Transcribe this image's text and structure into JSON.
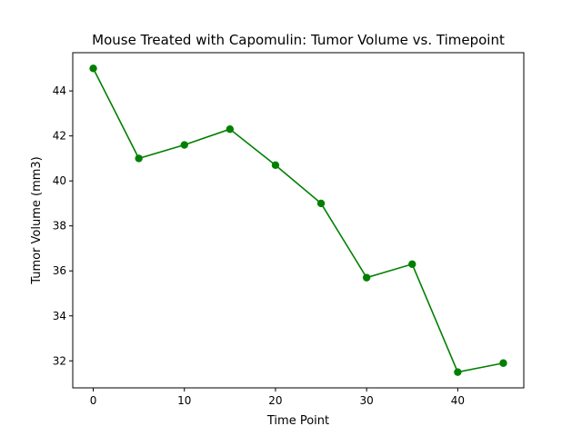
{
  "chart_data": {
    "type": "line",
    "title": "Mouse Treated with Capomulin: Tumor Volume vs. Timepoint",
    "xlabel": "Time Point",
    "ylabel": "Tumor Volume (mm3)",
    "x": [
      0,
      5,
      10,
      15,
      20,
      25,
      30,
      35,
      40,
      45
    ],
    "series": [
      {
        "values": [
          45.0,
          41.0,
          41.6,
          42.3,
          40.7,
          39.0,
          35.7,
          36.3,
          31.5,
          31.9
        ]
      }
    ],
    "xlim": [
      -2.25,
      47.25
    ],
    "ylim": [
      30.8,
      45.7
    ],
    "xticks": [
      0,
      10,
      20,
      30,
      40
    ],
    "yticks": [
      32,
      34,
      36,
      38,
      40,
      42,
      44
    ],
    "color": "#008000",
    "marker": "circle",
    "grid": false
  }
}
